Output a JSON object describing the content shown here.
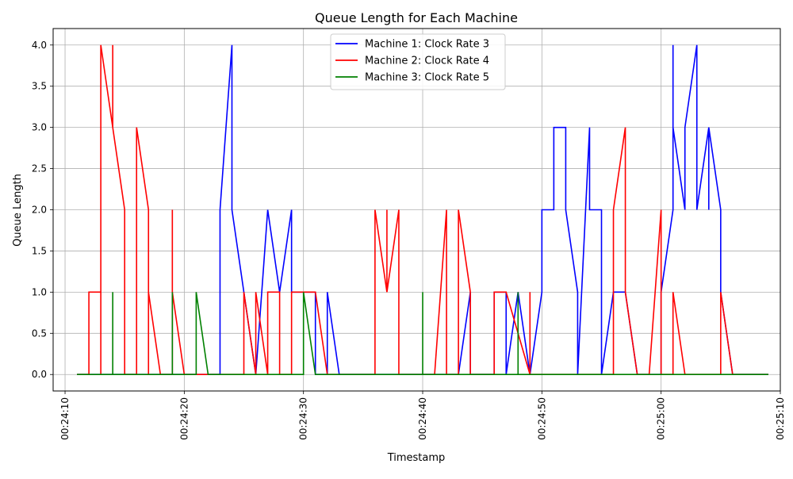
{
  "chart_data": {
    "type": "line",
    "title": "Queue Length for Each Machine",
    "xlabel": "Timestamp",
    "ylabel": "Queue Length",
    "x_unit": "time (hh:mm:ss)",
    "xlim": [
      "00:24:09",
      "00:25:10"
    ],
    "ylim": [
      -0.2,
      4.2
    ],
    "x_ticks": [
      "00:24:10",
      "00:24:20",
      "00:24:30",
      "00:24:40",
      "00:24:50",
      "00:25:00",
      "00:25:10"
    ],
    "y_ticks": [
      "0.0",
      "0.5",
      "1.0",
      "1.5",
      "2.0",
      "2.5",
      "3.0",
      "3.5",
      "4.0"
    ],
    "grid": true,
    "legend_position": "top-center",
    "series": [
      {
        "name": "Machine 1: Clock Rate 3",
        "color": "#0000ff",
        "points": [
          [
            "00:24:11",
            0
          ],
          [
            "00:24:23",
            0
          ],
          [
            "00:24:23",
            2
          ],
          [
            "00:24:24",
            4
          ],
          [
            "00:24:24",
            2
          ],
          [
            "00:24:26",
            0
          ],
          [
            "00:24:27",
            2
          ],
          [
            "00:24:28",
            1
          ],
          [
            "00:24:29",
            2
          ],
          [
            "00:24:29",
            1
          ],
          [
            "00:24:31",
            1
          ],
          [
            "00:24:31",
            0
          ],
          [
            "00:24:32",
            0
          ],
          [
            "00:24:32",
            1
          ],
          [
            "00:24:33",
            0
          ],
          [
            "00:24:40",
            0
          ],
          [
            "00:24:41",
            0
          ],
          [
            "00:24:43",
            0
          ],
          [
            "00:24:44",
            1
          ],
          [
            "00:24:44",
            0
          ],
          [
            "00:24:46",
            0
          ],
          [
            "00:24:46",
            1
          ],
          [
            "00:24:47",
            1
          ],
          [
            "00:24:47",
            0
          ],
          [
            "00:24:48",
            1
          ],
          [
            "00:24:49",
            0
          ],
          [
            "00:24:50",
            1
          ],
          [
            "00:24:50",
            2
          ],
          [
            "00:24:51",
            2
          ],
          [
            "00:24:51",
            3
          ],
          [
            "00:24:52",
            3
          ],
          [
            "00:24:52",
            2
          ],
          [
            "00:24:53",
            1
          ],
          [
            "00:24:53",
            0
          ],
          [
            "00:24:54",
            3
          ],
          [
            "00:24:54",
            2
          ],
          [
            "00:24:55",
            2
          ],
          [
            "00:24:55",
            0
          ],
          [
            "00:24:56",
            1
          ],
          [
            "00:24:57",
            1
          ],
          [
            "00:24:58",
            0
          ],
          [
            "00:24:59",
            0
          ],
          [
            "00:25:00",
            0
          ],
          [
            "00:25:00",
            1
          ],
          [
            "00:25:01",
            2
          ],
          [
            "00:25:01",
            4
          ],
          [
            "00:25:01",
            3
          ],
          [
            "00:25:02",
            2
          ],
          [
            "00:25:02",
            3
          ],
          [
            "00:25:03",
            4
          ],
          [
            "00:25:03",
            2
          ],
          [
            "00:25:04",
            3
          ],
          [
            "00:25:04",
            2
          ],
          [
            "00:25:04",
            3
          ],
          [
            "00:25:05",
            2
          ],
          [
            "00:25:05",
            1
          ],
          [
            "00:25:06",
            0
          ],
          [
            "00:25:09",
            0
          ]
        ]
      },
      {
        "name": "Machine 2: Clock Rate 4",
        "color": "#ff0000",
        "points": [
          [
            "00:24:11",
            0
          ],
          [
            "00:24:12",
            0
          ],
          [
            "00:24:12",
            1
          ],
          [
            "00:24:13",
            1
          ],
          [
            "00:24:13",
            0
          ],
          [
            "00:24:13",
            4
          ],
          [
            "00:24:14",
            3
          ],
          [
            "00:24:14",
            4
          ],
          [
            "00:24:14",
            3
          ],
          [
            "00:24:15",
            2
          ],
          [
            "00:24:15",
            0
          ],
          [
            "00:24:16",
            0
          ],
          [
            "00:24:16",
            3
          ],
          [
            "00:24:17",
            2
          ],
          [
            "00:24:17",
            0
          ],
          [
            "00:24:17",
            1
          ],
          [
            "00:24:18",
            0
          ],
          [
            "00:24:19",
            0
          ],
          [
            "00:24:19",
            2
          ],
          [
            "00:24:19",
            1
          ],
          [
            "00:24:20",
            0
          ],
          [
            "00:24:25",
            0
          ],
          [
            "00:24:25",
            1
          ],
          [
            "00:24:26",
            0
          ],
          [
            "00:24:26",
            1
          ],
          [
            "00:24:27",
            0
          ],
          [
            "00:24:27",
            1
          ],
          [
            "00:24:28",
            1
          ],
          [
            "00:24:28",
            0
          ],
          [
            "00:24:29",
            0
          ],
          [
            "00:24:29",
            1
          ],
          [
            "00:24:31",
            1
          ],
          [
            "00:24:32",
            0
          ],
          [
            "00:24:36",
            0
          ],
          [
            "00:24:36",
            2
          ],
          [
            "00:24:37",
            1
          ],
          [
            "00:24:37",
            2
          ],
          [
            "00:24:37",
            1
          ],
          [
            "00:24:38",
            2
          ],
          [
            "00:24:38",
            0
          ],
          [
            "00:24:41",
            0
          ],
          [
            "00:24:42",
            2
          ],
          [
            "00:24:42",
            0
          ],
          [
            "00:24:43",
            0
          ],
          [
            "00:24:43",
            2
          ],
          [
            "00:24:44",
            1
          ],
          [
            "00:24:44",
            0
          ],
          [
            "00:24:46",
            0
          ],
          [
            "00:24:46",
            1
          ],
          [
            "00:24:47",
            1
          ],
          [
            "00:24:49",
            0
          ],
          [
            "00:24:49",
            1
          ],
          [
            "00:24:49",
            0
          ],
          [
            "00:24:56",
            0
          ],
          [
            "00:24:56",
            2
          ],
          [
            "00:24:57",
            3
          ],
          [
            "00:24:57",
            1
          ],
          [
            "00:24:58",
            0
          ],
          [
            "00:24:59",
            0
          ],
          [
            "00:25:00",
            2
          ],
          [
            "00:25:00",
            0
          ],
          [
            "00:25:01",
            0
          ],
          [
            "00:25:01",
            1
          ],
          [
            "00:25:02",
            0
          ],
          [
            "00:25:05",
            0
          ],
          [
            "00:25:05",
            1
          ],
          [
            "00:25:06",
            0
          ],
          [
            "00:25:09",
            0
          ]
        ]
      },
      {
        "name": "Machine 3: Clock Rate 5",
        "color": "#008000",
        "points": [
          [
            "00:24:11",
            0
          ],
          [
            "00:24:14",
            0
          ],
          [
            "00:24:14",
            1
          ],
          [
            "00:24:14",
            0
          ],
          [
            "00:24:19",
            0
          ],
          [
            "00:24:19",
            1
          ],
          [
            "00:24:19",
            0
          ],
          [
            "00:24:21",
            0
          ],
          [
            "00:24:21",
            1
          ],
          [
            "00:24:22",
            0
          ],
          [
            "00:24:30",
            0
          ],
          [
            "00:24:30",
            1
          ],
          [
            "00:24:31",
            0
          ],
          [
            "00:24:40",
            0
          ],
          [
            "00:24:40",
            1
          ],
          [
            "00:24:40",
            0
          ],
          [
            "00:24:48",
            0
          ],
          [
            "00:24:48",
            1
          ],
          [
            "00:24:48",
            0
          ],
          [
            "00:25:09",
            0
          ]
        ]
      }
    ]
  }
}
